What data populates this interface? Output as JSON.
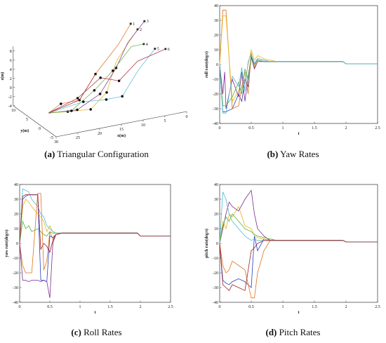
{
  "captions": [
    {
      "letter": "(a)",
      "text": " Triangular Configuration"
    },
    {
      "letter": "(b)",
      "text": " Yaw Rates"
    },
    {
      "letter": "(c)",
      "text": " Roll Rates"
    },
    {
      "letter": "(d)",
      "text": " Pitch Rates"
    }
  ],
  "series_colors": [
    "#1f3fbf",
    "#e0701a",
    "#e8b41e",
    "#7a2c8f",
    "#56b03c",
    "#4fb8d8",
    "#a01f2a",
    "#222222"
  ],
  "chart_data": [
    {
      "type": "line",
      "title": "",
      "projection": "3d",
      "xlabel": "x(m)",
      "ylabel": "y(m)",
      "zlabel": "z(m)",
      "x_ticks": [
        "30",
        "25",
        "20",
        "15",
        "10",
        "5",
        "0"
      ],
      "y_ticks": [
        "-5",
        "0",
        "5",
        "10"
      ],
      "z_ticks": [
        "8",
        "6",
        "4",
        "2",
        "0",
        "-2",
        "-4"
      ],
      "markers": [
        "1",
        "2",
        "3",
        "4",
        "5",
        "6",
        "7",
        "8"
      ],
      "series": [
        {
          "path": [
            [
              30,
              -2,
              0
            ],
            [
              26,
              0,
              0.5
            ],
            [
              20,
              3,
              -1
            ],
            [
              14,
              7,
              2
            ],
            [
              7,
              10,
              6
            ],
            [
              3,
              12,
              9
            ]
          ]
        },
        {
          "path": [
            [
              30,
              -2,
              0
            ],
            [
              25,
              -1,
              -1
            ],
            [
              18,
              2,
              -3
            ],
            [
              12,
              6,
              -2
            ],
            [
              8,
              9,
              3
            ],
            [
              2,
              11,
              8
            ]
          ]
        },
        {
          "path": [
            [
              30,
              -2,
              0
            ],
            [
              24,
              -3,
              0
            ],
            [
              17,
              0,
              1
            ],
            [
              11,
              4,
              4
            ],
            [
              6,
              8,
              7
            ],
            [
              1,
              10,
              10
            ]
          ]
        },
        {
          "path": [
            [
              30,
              -2,
              0
            ],
            [
              23,
              1,
              -2
            ],
            [
              16,
              4,
              0
            ],
            [
              10,
              7,
              2
            ],
            [
              4,
              10,
              5
            ],
            [
              0,
              12,
              4
            ]
          ]
        },
        {
          "path": [
            [
              30,
              -2,
              0
            ],
            [
              22,
              -2,
              1
            ],
            [
              15,
              1,
              -1
            ],
            [
              9,
              5,
              -3
            ],
            [
              3,
              9,
              0
            ],
            [
              -2,
              11,
              3
            ]
          ]
        },
        {
          "path": [
            [
              30,
              -2,
              0
            ],
            [
              21,
              2,
              0
            ],
            [
              14,
              5,
              2
            ],
            [
              8,
              8,
              -1
            ],
            [
              2,
              11,
              1
            ],
            [
              -5,
              12,
              2
            ]
          ]
        }
      ]
    },
    {
      "type": "line",
      "title": "",
      "xlabel": "t",
      "ylabel": "roll rate(deg/s)",
      "xlim": [
        0,
        2.5
      ],
      "ylim": [
        -40,
        40
      ],
      "x_ticks": [
        "0",
        "0.5",
        "1",
        "1.5",
        "2",
        "2.5"
      ],
      "y_ticks": [
        "40",
        "30",
        "20",
        "10",
        "0",
        "-10",
        "-20",
        "-30",
        "-40"
      ],
      "series": [
        {
          "x": [
            0,
            0.05,
            0.08,
            0.1,
            0.2,
            0.3,
            0.35,
            0.4,
            0.45,
            0.5,
            0.55,
            0.6,
            0.7,
            0.8,
            0.9,
            1.0,
            1.5,
            1.95,
            2.0,
            2.5
          ],
          "y": [
            0,
            -32,
            -32,
            -32,
            -30,
            -20,
            -25,
            -10,
            -15,
            5,
            0,
            3,
            2,
            2,
            2,
            2,
            2,
            2,
            0.5,
            0.5
          ]
        },
        {
          "x": [
            0,
            0.05,
            0.08,
            0.1,
            0.2,
            0.3,
            0.35,
            0.4,
            0.45,
            0.5,
            0.55,
            0.6,
            0.7,
            0.8,
            0.9,
            1.0,
            1.5,
            1.95,
            2.0,
            2.5
          ],
          "y": [
            0,
            37,
            37,
            37,
            -30,
            -28,
            -15,
            -5,
            -20,
            8,
            -2,
            4,
            3,
            2,
            2,
            2,
            2,
            2,
            0.5,
            0.5
          ]
        },
        {
          "x": [
            0,
            0.05,
            0.08,
            0.1,
            0.2,
            0.3,
            0.35,
            0.4,
            0.45,
            0.5,
            0.55,
            0.6,
            0.7,
            0.8,
            0.9,
            1.0,
            1.5,
            1.95,
            2.0,
            2.5
          ],
          "y": [
            0,
            33,
            33,
            33,
            -25,
            -18,
            -8,
            -12,
            0,
            10,
            3,
            6,
            4,
            3,
            2,
            2,
            2,
            2,
            0.5,
            0.5
          ]
        },
        {
          "x": [
            0,
            0.05,
            0.08,
            0.1,
            0.2,
            0.3,
            0.35,
            0.4,
            0.45,
            0.5,
            0.55,
            0.6,
            0.7,
            0.8,
            0.9,
            1.0,
            1.5,
            1.95,
            2.0,
            2.5
          ],
          "y": [
            0,
            -20,
            -5,
            -30,
            -10,
            -22,
            -5,
            -25,
            -8,
            5,
            -3,
            2,
            2,
            2,
            2,
            2,
            2,
            2,
            0.5,
            0.5
          ]
        },
        {
          "x": [
            0,
            0.05,
            0.08,
            0.1,
            0.2,
            0.3,
            0.35,
            0.4,
            0.45,
            0.5,
            0.55,
            0.6,
            0.7,
            0.8,
            0.9,
            1.0,
            1.5,
            1.95,
            2.0,
            2.5
          ],
          "y": [
            0,
            -28,
            -28,
            -28,
            -22,
            -12,
            -20,
            -3,
            -10,
            6,
            0,
            3,
            2,
            2,
            2,
            2,
            2,
            2,
            0.5,
            0.5
          ]
        },
        {
          "x": [
            0,
            0.05,
            0.08,
            0.1,
            0.2,
            0.3,
            0.35,
            0.4,
            0.45,
            0.5,
            0.55,
            0.6,
            0.7,
            0.8,
            0.9,
            1.0,
            1.5,
            1.95,
            2.0,
            2.5
          ],
          "y": [
            0,
            -33,
            -33,
            -33,
            -8,
            -15,
            -2,
            -18,
            2,
            7,
            1,
            4,
            3,
            2,
            2,
            2,
            2,
            2,
            0.5,
            0.5
          ]
        }
      ]
    },
    {
      "type": "line",
      "title": "",
      "xlabel": "t",
      "ylabel": "yaw rate(deg/s)",
      "xlim": [
        0,
        2.5
      ],
      "ylim": [
        -40,
        40
      ],
      "x_ticks": [
        "0",
        "0.5",
        "1",
        "1.5",
        "2",
        "2.5"
      ],
      "y_ticks": [
        "40",
        "30",
        "20",
        "10",
        "0",
        "-10",
        "-20",
        "-30",
        "-40"
      ],
      "series": [
        {
          "x": [
            0,
            0.05,
            0.1,
            0.15,
            0.2,
            0.3,
            0.35,
            0.4,
            0.45,
            0.5,
            0.55,
            0.6,
            0.7,
            0.8,
            1.0,
            1.5,
            1.95,
            2.0,
            2.5
          ],
          "y": [
            0,
            30,
            32,
            33,
            33,
            33,
            -25,
            -25,
            -26,
            5,
            4,
            6,
            7,
            7,
            7,
            7,
            7,
            5,
            5
          ]
        },
        {
          "x": [
            0,
            0.05,
            0.1,
            0.15,
            0.2,
            0.3,
            0.35,
            0.4,
            0.45,
            0.5,
            0.55,
            0.6,
            0.7,
            0.8,
            1.0,
            1.5,
            1.95,
            2.0,
            2.5
          ],
          "y": [
            0,
            -15,
            -20,
            -20,
            -20,
            34,
            34,
            -18,
            -12,
            8,
            3,
            6,
            7,
            7,
            7,
            7,
            7,
            5,
            5
          ]
        },
        {
          "x": [
            0,
            0.05,
            0.1,
            0.15,
            0.2,
            0.3,
            0.35,
            0.4,
            0.45,
            0.5,
            0.55,
            0.6,
            0.7,
            0.8,
            1.0,
            1.5,
            1.95,
            2.0,
            2.5
          ],
          "y": [
            0,
            25,
            30,
            28,
            25,
            20,
            18,
            15,
            8,
            12,
            8,
            7,
            7,
            7,
            7,
            7,
            7,
            5,
            5
          ]
        },
        {
          "x": [
            0,
            0.05,
            0.1,
            0.15,
            0.2,
            0.3,
            0.35,
            0.4,
            0.45,
            0.5,
            0.55,
            0.6,
            0.7,
            0.8,
            1.0,
            1.5,
            1.95,
            2.0,
            2.5
          ],
          "y": [
            0,
            -25,
            -25,
            -26,
            -25,
            -25,
            -26,
            -25,
            -26,
            -37,
            0,
            6,
            7,
            7,
            7,
            7,
            7,
            5,
            5
          ]
        },
        {
          "x": [
            0,
            0.05,
            0.1,
            0.15,
            0.2,
            0.3,
            0.35,
            0.4,
            0.45,
            0.5,
            0.55,
            0.6,
            0.7,
            0.8,
            1.0,
            1.5,
            1.95,
            2.0,
            2.5
          ],
          "y": [
            0,
            15,
            10,
            12,
            8,
            10,
            8,
            6,
            5,
            8,
            7,
            7,
            7,
            7,
            7,
            7,
            7,
            5,
            5
          ]
        },
        {
          "x": [
            0,
            0.05,
            0.1,
            0.15,
            0.2,
            0.3,
            0.35,
            0.4,
            0.45,
            0.5,
            0.55,
            0.6,
            0.7,
            0.8,
            1.0,
            1.5,
            1.95,
            2.0,
            2.5
          ],
          "y": [
            0,
            37,
            36,
            35,
            30,
            25,
            20,
            18,
            12,
            10,
            8,
            7,
            7,
            7,
            7,
            7,
            7,
            5,
            5
          ]
        },
        {
          "x": [
            0,
            0.05,
            0.1,
            0.15,
            0.2,
            0.3,
            0.35,
            0.4,
            0.45,
            0.5,
            0.55,
            0.6,
            0.7,
            0.8,
            1.0,
            1.5,
            1.95,
            2.0,
            2.5
          ],
          "y": [
            0,
            32,
            33,
            33,
            33,
            33,
            -4,
            0,
            -2,
            -6,
            2,
            6,
            7,
            7,
            7,
            7,
            7,
            5,
            5
          ]
        }
      ]
    },
    {
      "type": "line",
      "title": "",
      "xlabel": "t",
      "ylabel": "pitch rate(deg/s)",
      "xlim": [
        0,
        2.5
      ],
      "ylim": [
        -40,
        40
      ],
      "x_ticks": [
        "0",
        "0.5",
        "1",
        "1.5",
        "2",
        "2.5"
      ],
      "y_ticks": [
        "40",
        "30",
        "20",
        "10",
        "0",
        "-10",
        "-20",
        "-30",
        "-40"
      ],
      "series": [
        {
          "x": [
            0,
            0.05,
            0.1,
            0.15,
            0.2,
            0.3,
            0.4,
            0.5,
            0.55,
            0.6,
            0.7,
            0.8,
            0.9,
            1.0,
            1.5,
            1.95,
            2.0,
            2.5
          ],
          "y": [
            0,
            -25,
            -27,
            -28,
            -26,
            -24,
            -26,
            -30,
            5,
            -5,
            3,
            2,
            2,
            2,
            2,
            2,
            1,
            1
          ]
        },
        {
          "x": [
            0,
            0.05,
            0.1,
            0.15,
            0.2,
            0.3,
            0.4,
            0.5,
            0.55,
            0.6,
            0.7,
            0.8,
            0.9,
            1.0,
            1.5,
            1.95,
            2.0,
            2.5
          ],
          "y": [
            0,
            -15,
            -20,
            -18,
            -12,
            -15,
            -18,
            -37,
            -37,
            -20,
            -5,
            2,
            2,
            2,
            2,
            2,
            1,
            1
          ]
        },
        {
          "x": [
            0,
            0.05,
            0.1,
            0.15,
            0.2,
            0.3,
            0.4,
            0.5,
            0.55,
            0.6,
            0.7,
            0.8,
            0.9,
            1.0,
            1.5,
            1.95,
            2.0,
            2.5
          ],
          "y": [
            0,
            15,
            10,
            20,
            18,
            25,
            12,
            10,
            5,
            4,
            3,
            2,
            2,
            2,
            2,
            2,
            1,
            1
          ]
        },
        {
          "x": [
            0,
            0.05,
            0.1,
            0.15,
            0.2,
            0.3,
            0.4,
            0.5,
            0.55,
            0.6,
            0.7,
            0.8,
            0.9,
            1.0,
            1.5,
            1.95,
            2.0,
            2.5
          ],
          "y": [
            0,
            10,
            20,
            28,
            25,
            22,
            30,
            36,
            20,
            10,
            5,
            2,
            2,
            2,
            2,
            2,
            1,
            1
          ]
        },
        {
          "x": [
            0,
            0.05,
            0.1,
            0.15,
            0.2,
            0.3,
            0.4,
            0.5,
            0.55,
            0.6,
            0.7,
            0.8,
            0.9,
            1.0,
            1.5,
            1.95,
            2.0,
            2.5
          ],
          "y": [
            0,
            12,
            18,
            15,
            20,
            15,
            10,
            8,
            6,
            5,
            4,
            3,
            2,
            2,
            2,
            2,
            1,
            1
          ]
        },
        {
          "x": [
            0,
            0.05,
            0.1,
            0.15,
            0.2,
            0.3,
            0.4,
            0.5,
            0.55,
            0.6,
            0.7,
            0.8,
            0.9,
            1.0,
            1.5,
            1.95,
            2.0,
            2.5
          ],
          "y": [
            0,
            35,
            30,
            20,
            15,
            10,
            5,
            2,
            3,
            2,
            2,
            2,
            2,
            2,
            2,
            2,
            1,
            1
          ]
        },
        {
          "x": [
            0,
            0.05,
            0.1,
            0.15,
            0.2,
            0.3,
            0.4,
            0.5,
            0.55,
            0.6,
            0.7,
            0.8,
            0.9,
            1.0,
            1.5,
            1.95,
            2.0,
            2.5
          ],
          "y": [
            0,
            -28,
            -30,
            -32,
            -28,
            -30,
            -32,
            -5,
            -3,
            0,
            2,
            2,
            2,
            2,
            2,
            2,
            1,
            1
          ]
        }
      ]
    }
  ]
}
